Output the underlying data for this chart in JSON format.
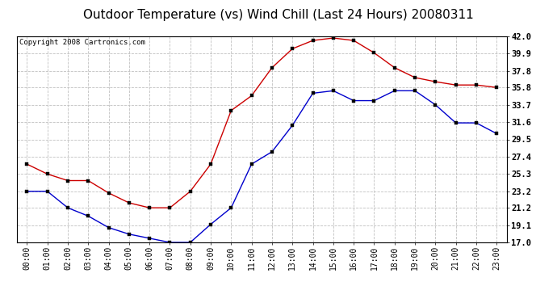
{
  "title": "Outdoor Temperature (vs) Wind Chill (Last 24 Hours) 20080311",
  "copyright_text": "Copyright 2008 Cartronics.com",
  "x_labels": [
    "00:00",
    "01:00",
    "02:00",
    "03:00",
    "04:00",
    "05:00",
    "06:00",
    "07:00",
    "08:00",
    "09:00",
    "10:00",
    "11:00",
    "12:00",
    "13:00",
    "14:00",
    "15:00",
    "16:00",
    "17:00",
    "18:00",
    "19:00",
    "20:00",
    "21:00",
    "22:00",
    "23:00"
  ],
  "temp_red": [
    26.5,
    25.3,
    24.5,
    24.5,
    23.0,
    21.8,
    21.2,
    21.2,
    23.2,
    26.5,
    33.0,
    34.8,
    38.2,
    40.5,
    41.5,
    41.8,
    41.5,
    40.0,
    38.2,
    37.0,
    36.5,
    36.1,
    36.1,
    35.8
  ],
  "temp_blue": [
    23.2,
    23.2,
    21.2,
    20.2,
    18.8,
    18.0,
    17.5,
    17.0,
    17.0,
    19.2,
    21.2,
    26.5,
    28.0,
    31.2,
    35.1,
    35.4,
    34.2,
    34.2,
    35.4,
    35.4,
    33.7,
    31.5,
    31.5,
    30.2
  ],
  "y_ticks": [
    17.0,
    19.1,
    21.2,
    23.2,
    25.3,
    27.4,
    29.5,
    31.6,
    33.7,
    35.8,
    37.8,
    39.9,
    42.0
  ],
  "ylim": [
    17.0,
    42.0
  ],
  "red_color": "#cc0000",
  "blue_color": "#0000cc",
  "grid_color": "#c0c0c0",
  "bg_color": "#ffffff",
  "title_fontsize": 11,
  "copyright_fontsize": 6.5,
  "tick_fontsize": 7.5,
  "xtick_fontsize": 7
}
